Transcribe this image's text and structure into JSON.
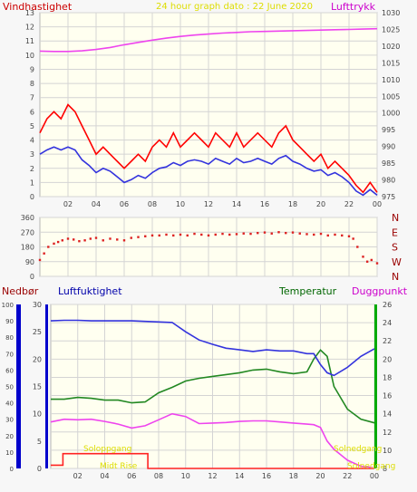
{
  "colors": {
    "panel_bg": "#fffff0",
    "frame": "#b4b4b4",
    "grid": "#d4d4d4",
    "axis_text": "#444444",
    "wind_gust": "#ff0000",
    "wind_mean": "#3333dd",
    "pressure": "#ee44ee",
    "wind_dir_points": "#dd2222",
    "humidity": "#3333dd",
    "temperature": "#228822",
    "dewpoint": "#ee44ee",
    "rain": "#ff2222",
    "sun_label": "#e8e800"
  },
  "chart_data": [
    {
      "type": "line",
      "id": "wind-pressure",
      "title": "24 hour graph dato : 22 June 2020",
      "left_label": "Vindhastighet",
      "right_label": "Lufttrykk",
      "x_ticks": [
        "02",
        "04",
        "06",
        "08",
        "10",
        "12",
        "14",
        "16",
        "18",
        "20",
        "22",
        "00"
      ],
      "ylim_left": [
        0,
        13
      ],
      "yticks_left": [
        0,
        1,
        2,
        3,
        4,
        5,
        6,
        7,
        8,
        9,
        10,
        11,
        12,
        13
      ],
      "ylim_right": [
        975,
        1030
      ],
      "yticks_right": [
        975,
        980,
        985,
        990,
        995,
        1000,
        1005,
        1010,
        1015,
        1020,
        1025,
        1030
      ],
      "series": [
        {
          "axis": "left",
          "x": [
            0,
            0.5,
            1,
            1.5,
            2,
            2.5,
            3,
            3.5,
            4,
            4.5,
            5,
            5.5,
            6,
            6.5,
            7,
            7.5,
            8,
            8.5,
            9,
            9.5,
            10,
            10.5,
            11,
            11.5,
            12,
            12.5,
            13,
            13.5,
            14,
            14.5,
            15,
            15.5,
            16,
            16.5,
            17,
            17.5,
            18,
            18.5,
            19,
            19.5,
            20,
            20.5,
            21,
            21.5,
            22,
            22.5,
            23,
            23.5,
            24
          ],
          "values": [
            4.5,
            5.5,
            6.0,
            5.5,
            6.5,
            6.0,
            5.0,
            4.0,
            3.0,
            3.5,
            3.0,
            2.5,
            2.0,
            2.5,
            3.0,
            2.5,
            3.5,
            4.0,
            3.5,
            4.5,
            3.5,
            4.0,
            4.5,
            4.0,
            3.5,
            4.5,
            4.0,
            3.5,
            4.5,
            3.5,
            4.0,
            4.5,
            4.0,
            3.5,
            4.5,
            5.0,
            4.0,
            3.5,
            3.0,
            2.5,
            3.0,
            2.0,
            2.5,
            2.0,
            1.5,
            0.8,
            0.3,
            1.0,
            0.3
          ]
        },
        {
          "axis": "left",
          "x": [
            0,
            0.5,
            1,
            1.5,
            2,
            2.5,
            3,
            3.5,
            4,
            4.5,
            5,
            5.5,
            6,
            6.5,
            7,
            7.5,
            8,
            8.5,
            9,
            9.5,
            10,
            10.5,
            11,
            11.5,
            12,
            12.5,
            13,
            13.5,
            14,
            14.5,
            15,
            15.5,
            16,
            16.5,
            17,
            17.5,
            18,
            18.5,
            19,
            19.5,
            20,
            20.5,
            21,
            21.5,
            22,
            22.5,
            23,
            23.5,
            24
          ],
          "values": [
            3.0,
            3.3,
            3.5,
            3.3,
            3.5,
            3.3,
            2.6,
            2.2,
            1.7,
            2.0,
            1.8,
            1.4,
            1.0,
            1.2,
            1.5,
            1.3,
            1.7,
            2.0,
            2.1,
            2.4,
            2.2,
            2.5,
            2.6,
            2.5,
            2.3,
            2.7,
            2.5,
            2.3,
            2.7,
            2.4,
            2.5,
            2.7,
            2.5,
            2.3,
            2.7,
            2.9,
            2.5,
            2.3,
            2.0,
            1.8,
            1.9,
            1.5,
            1.7,
            1.4,
            1.0,
            0.4,
            0.1,
            0.5,
            0.1
          ]
        },
        {
          "axis": "right",
          "x": [
            0,
            1,
            2,
            3,
            4,
            5,
            6,
            7,
            8,
            9,
            10,
            11,
            12,
            13,
            14,
            15,
            16,
            17,
            18,
            19,
            20,
            21,
            22,
            23,
            24
          ],
          "values": [
            1018.5,
            1018.4,
            1018.4,
            1018.6,
            1019.0,
            1019.6,
            1020.4,
            1021.1,
            1021.8,
            1022.4,
            1022.9,
            1023.3,
            1023.6,
            1023.9,
            1024.1,
            1024.3,
            1024.4,
            1024.5,
            1024.6,
            1024.7,
            1024.8,
            1024.9,
            1025.0,
            1025.1,
            1025.2
          ]
        }
      ]
    },
    {
      "type": "scatter",
      "id": "wind-direction",
      "left_label": "",
      "right_label": "",
      "ylim": [
        0,
        360
      ],
      "yticks": [
        0,
        90,
        180,
        270,
        360
      ],
      "right_ticks": [
        "N",
        "W",
        "S",
        "E",
        "N"
      ],
      "series": [
        {
          "x": [
            0,
            0.3,
            0.6,
            1,
            1.3,
            1.6,
            2,
            2.4,
            2.8,
            3.2,
            3.6,
            4,
            4.5,
            5,
            5.5,
            6,
            6.5,
            7,
            7.5,
            8,
            8.5,
            9,
            9.5,
            10,
            10.5,
            11,
            11.5,
            12,
            12.5,
            13,
            13.5,
            14,
            14.5,
            15,
            15.5,
            16,
            16.5,
            17,
            17.5,
            18,
            18.5,
            19,
            19.5,
            20,
            20.5,
            21,
            21.5,
            22,
            22.3,
            22.6,
            23,
            23.3,
            23.6,
            24
          ],
          "values": [
            100,
            140,
            180,
            200,
            210,
            220,
            230,
            225,
            215,
            220,
            230,
            235,
            220,
            230,
            225,
            220,
            235,
            240,
            245,
            250,
            250,
            255,
            250,
            255,
            250,
            260,
            255,
            250,
            255,
            260,
            255,
            258,
            262,
            260,
            265,
            268,
            262,
            270,
            265,
            268,
            262,
            258,
            255,
            260,
            250,
            255,
            250,
            245,
            230,
            180,
            120,
            90,
            100,
            80
          ]
        }
      ]
    },
    {
      "type": "line",
      "id": "humidity-temperature",
      "left_labels": [
        "Nedbør",
        "Luftfuktighet"
      ],
      "right_labels": [
        "Temperatur",
        "Duggpunkt"
      ],
      "ylim_rain": [
        0,
        100
      ],
      "yticks_rain": [
        0,
        10,
        20,
        30,
        40,
        50,
        60,
        70,
        80,
        90,
        100
      ],
      "ylim_left": [
        0,
        30
      ],
      "yticks_left": [
        0,
        5,
        10,
        15,
        20,
        25,
        30
      ],
      "ylim_right": [
        8,
        26
      ],
      "yticks_right": [
        8,
        10,
        12,
        14,
        16,
        18,
        20,
        22,
        24,
        26
      ],
      "annotations": [
        "Soloppgang",
        "Midt Rise",
        "Solnedgang",
        "Solnedgang"
      ],
      "series": [
        {
          "axis": "left",
          "x": [
            0,
            1,
            2,
            3,
            4,
            5,
            6,
            7,
            8,
            9,
            10,
            11,
            12,
            13,
            14,
            15,
            16,
            17,
            18,
            19,
            19.5,
            20,
            20.5,
            21,
            22,
            23,
            24
          ],
          "values": [
            27.0,
            27.1,
            27.1,
            27.0,
            27.0,
            27.0,
            27.0,
            26.9,
            26.8,
            26.7,
            25.0,
            23.5,
            22.7,
            22.0,
            21.7,
            21.4,
            21.7,
            21.5,
            21.5,
            21.0,
            21.0,
            19.0,
            17.5,
            17.0,
            18.5,
            20.5,
            21.9
          ]
        },
        {
          "axis": "right",
          "x": [
            0,
            1,
            2,
            3,
            4,
            5,
            6,
            7,
            8,
            9,
            10,
            11,
            12,
            13,
            14,
            15,
            16,
            17,
            18,
            19,
            19.5,
            20,
            20.5,
            21,
            22,
            23,
            24
          ],
          "values": [
            15.6,
            15.6,
            15.8,
            15.7,
            15.5,
            15.5,
            15.2,
            15.3,
            16.3,
            16.9,
            17.6,
            17.9,
            18.1,
            18.3,
            18.5,
            18.8,
            18.9,
            18.6,
            18.4,
            18.6,
            20.0,
            21.0,
            20.3,
            17.0,
            14.5,
            13.4,
            13.0
          ]
        },
        {
          "axis": "left",
          "x": [
            0,
            1,
            2,
            3,
            4,
            5,
            6,
            7,
            8,
            9,
            10,
            11,
            12,
            13,
            14,
            15,
            16,
            17,
            18,
            19,
            19.5,
            20,
            20.5,
            21,
            22,
            23,
            24
          ],
          "values": [
            8.5,
            9.0,
            8.9,
            9.0,
            8.6,
            8.1,
            7.4,
            7.8,
            8.9,
            10.0,
            9.5,
            8.2,
            8.3,
            8.4,
            8.6,
            8.7,
            8.7,
            8.5,
            8.3,
            8.1,
            8.0,
            7.5,
            5.0,
            3.5,
            1.5,
            0.4,
            0.1
          ]
        },
        {
          "axis": "rain",
          "x": [
            0,
            0.9,
            0.9,
            7.2,
            7.2,
            24
          ],
          "values": [
            2,
            2,
            9,
            9,
            0,
            0
          ]
        }
      ]
    }
  ]
}
